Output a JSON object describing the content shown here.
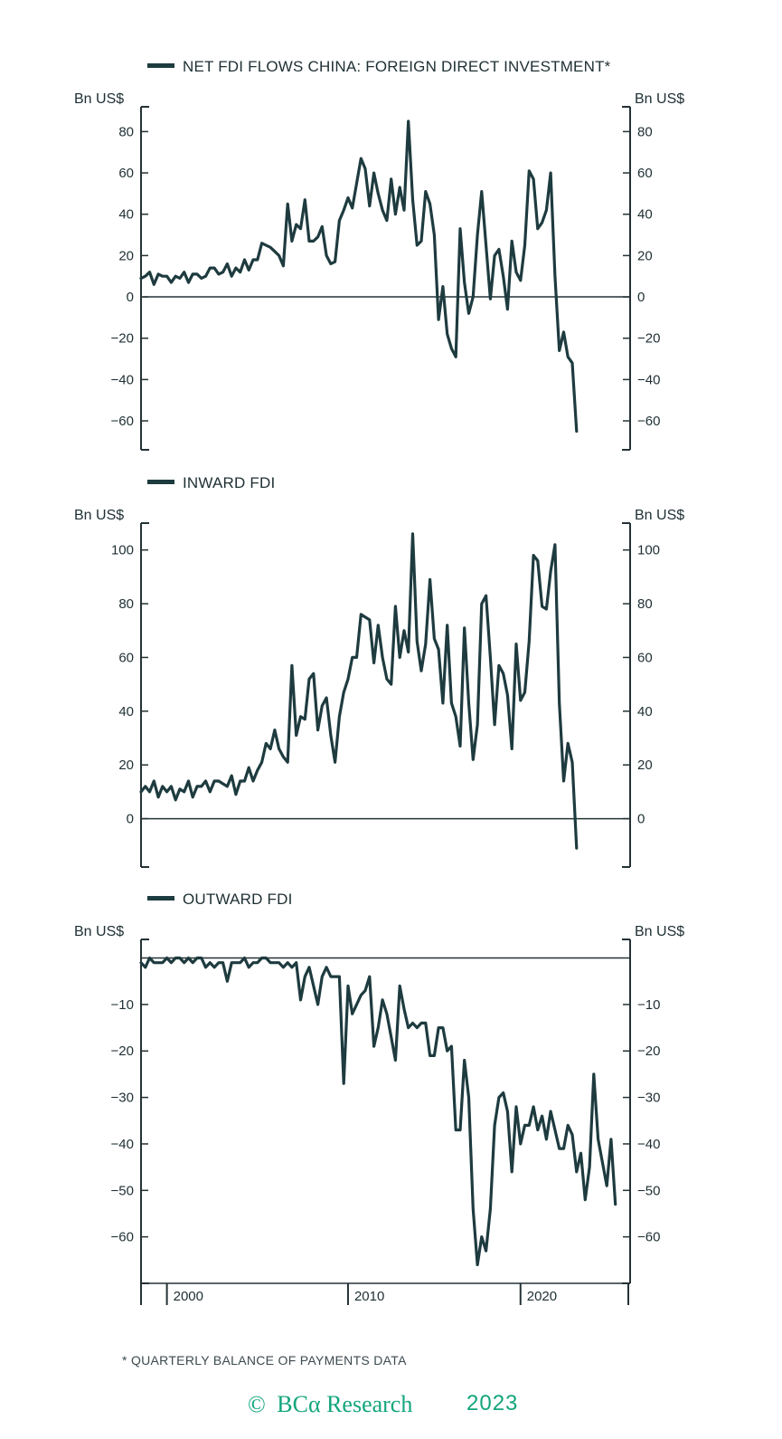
{
  "chart_data": [
    {
      "type": "line",
      "legend": "NET FDI FLOWS CHINA: FOREIGN DIRECT INVESTMENT*",
      "left_unit": "Bn US$",
      "right_unit": "Bn US$",
      "ylim": [
        -74,
        92
      ],
      "yticks": [
        80,
        60,
        40,
        20,
        0,
        -20,
        -40,
        -60
      ],
      "ytick_labels": [
        "80",
        "60",
        "40",
        "20",
        "0",
        "−20",
        "−40",
        "−60"
      ],
      "zero_line": true,
      "x_start": 1998.0,
      "x_step": 0.25,
      "series": [
        {
          "values": [
            9,
            10,
            12,
            6,
            11,
            10,
            10,
            7,
            10,
            9,
            12,
            7,
            11,
            11,
            9,
            10,
            14,
            14,
            11,
            12,
            16,
            10,
            14,
            12,
            18,
            13,
            18,
            18,
            26,
            25,
            24,
            22,
            20,
            15,
            45,
            27,
            35,
            33,
            47,
            27,
            27,
            29,
            34,
            20,
            16,
            17,
            37,
            42,
            48,
            43,
            55,
            67,
            62,
            44,
            60,
            50,
            42,
            37,
            57,
            40,
            53,
            42,
            85,
            47,
            25,
            27,
            51,
            45,
            30,
            -11,
            5,
            -18,
            -25,
            -29,
            33,
            7,
            -8,
            0,
            30,
            51,
            25,
            -1,
            20,
            23,
            10,
            -6,
            27,
            12,
            8,
            25,
            61,
            57,
            33,
            36,
            42,
            60,
            10,
            -26,
            -17,
            -29,
            -32,
            -65
          ]
        }
      ]
    },
    {
      "type": "line",
      "legend": "INWARD FDI",
      "left_unit": "Bn US$",
      "right_unit": "Bn US$",
      "ylim": [
        -18,
        110
      ],
      "yticks": [
        100,
        80,
        60,
        40,
        20,
        0
      ],
      "ytick_labels": [
        "100",
        "80",
        "60",
        "40",
        "20",
        "0"
      ],
      "zero_line": true,
      "x_start": 1998.0,
      "x_step": 0.25,
      "series": [
        {
          "values": [
            10,
            12,
            10,
            14,
            8,
            12,
            10,
            12,
            7,
            11,
            10,
            14,
            8,
            12,
            12,
            14,
            10,
            14,
            14,
            13,
            12,
            16,
            9,
            14,
            14,
            19,
            14,
            18,
            21,
            28,
            26,
            33,
            26,
            23,
            21,
            57,
            31,
            38,
            37,
            52,
            54,
            33,
            42,
            45,
            31,
            21,
            38,
            47,
            52,
            60,
            60,
            76,
            75,
            74,
            58,
            72,
            60,
            52,
            50,
            79,
            60,
            70,
            62,
            106,
            66,
            55,
            65,
            89,
            67,
            63,
            43,
            72,
            43,
            38,
            27,
            71,
            43,
            22,
            35,
            80,
            83,
            60,
            35,
            57,
            54,
            46,
            26,
            65,
            44,
            47,
            66,
            98,
            96,
            79,
            78,
            92,
            102,
            43,
            14,
            28,
            21,
            -11
          ]
        }
      ]
    },
    {
      "type": "line",
      "legend": "OUTWARD FDI",
      "left_unit": "Bn US$",
      "right_unit": "Bn US$",
      "ylim": [
        -70,
        4
      ],
      "yticks": [
        -10,
        -20,
        -30,
        -40,
        -50,
        -60
      ],
      "ytick_labels": [
        "−10",
        "−20",
        "−30",
        "−40",
        "−50",
        "−60"
      ],
      "zero_line": true,
      "x_start": 1998.0,
      "x_step": 0.25,
      "xticks": [
        1998.0,
        1999.5,
        2010.0,
        2020.0,
        2026.25
      ],
      "xtick_labels": [
        "",
        "2000",
        "2010",
        "2020",
        ""
      ],
      "series": [
        {
          "values": [
            -1,
            -2,
            0,
            -1,
            -1,
            -1,
            0,
            -1,
            0,
            0,
            -1,
            0,
            -1,
            0,
            0,
            -2,
            -1,
            -2,
            -1,
            -1,
            -5,
            -1,
            -1,
            -1,
            0,
            -2,
            -1,
            -1,
            0,
            0,
            -1,
            -1,
            -1,
            -2,
            -1,
            -2,
            -1,
            -9,
            -4,
            -2,
            -6,
            -10,
            -4,
            -2,
            -4,
            -4,
            -4,
            -27,
            -6,
            -12,
            -10,
            -8,
            -7,
            -4,
            -19,
            -15,
            -9,
            -12,
            -17,
            -22,
            -6,
            -11,
            -15,
            -14,
            -15,
            -14,
            -14,
            -21,
            -21,
            -15,
            -15,
            -20,
            -19,
            -37,
            -37,
            -22,
            -30,
            -54,
            -66,
            -60,
            -63,
            -54,
            -36,
            -30,
            -29,
            -33,
            -46,
            -32,
            -40,
            -36,
            -36,
            -32,
            -37,
            -34,
            -39,
            -33,
            -37,
            -41,
            -41,
            -36,
            -38,
            -46,
            -42,
            -52,
            -45,
            -25,
            -39,
            -44,
            -49,
            -39,
            -53
          ]
        }
      ]
    }
  ],
  "footnote": "*  QUARTERLY BALANCE OF PAYMENTS DATA",
  "brand": {
    "copyright": "©",
    "name": "BCα Research",
    "year": "2023",
    "color": "#13a57c"
  },
  "colors": {
    "line": "#1e3b3f",
    "axis": "#243236",
    "text": "#1e2f33"
  }
}
